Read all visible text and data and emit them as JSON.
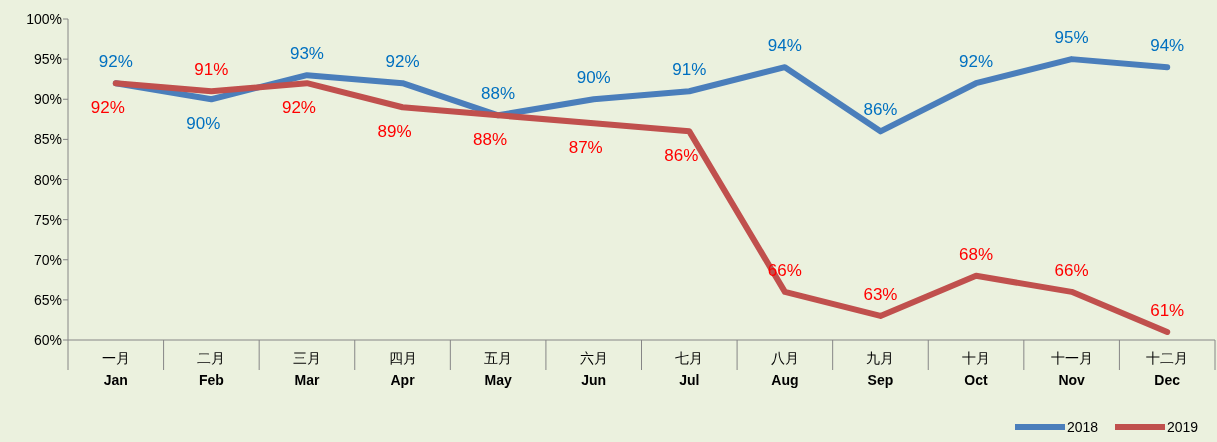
{
  "chart_data": {
    "type": "line",
    "categories": [
      "一月\nJan",
      "二月\nFeb",
      "三月\nMar",
      "四月\nApr",
      "五月\nMay",
      "六月\nJun",
      "七月\nJul",
      "八月\nAug",
      "九月\nSep",
      "十月\nOct",
      "十一月\nNov",
      "十二月\nDec"
    ],
    "series": [
      {
        "name": "2018",
        "color": "#4a7ebb",
        "values": [
          92,
          90,
          93,
          92,
          88,
          90,
          91,
          94,
          86,
          92,
          95,
          94
        ],
        "value_labels": [
          "92%",
          "90%",
          "93%",
          "92%",
          "88%",
          "90%",
          "91%",
          "94%",
          "86%",
          "92%",
          "95%",
          "94%"
        ]
      },
      {
        "name": "2019",
        "color": "#c0504d",
        "values": [
          92,
          91,
          92,
          89,
          88,
          87,
          86,
          66,
          63,
          68,
          66,
          61
        ],
        "value_labels": [
          "92%",
          "91%",
          "92%",
          "89%",
          "88%",
          "87%",
          "86%",
          "66%",
          "63%",
          "68%",
          "66%",
          "61%"
        ]
      }
    ],
    "ylim": [
      60,
      100
    ],
    "yticks": [
      {
        "value": 60,
        "label": "60%"
      },
      {
        "value": 65,
        "label": "65%"
      },
      {
        "value": 70,
        "label": "70%"
      },
      {
        "value": 75,
        "label": "75%"
      },
      {
        "value": 80,
        "label": "80%"
      },
      {
        "value": 85,
        "label": "85%"
      },
      {
        "value": 90,
        "label": "90%"
      },
      {
        "value": 95,
        "label": "95%"
      },
      {
        "value": 100,
        "label": "100%"
      }
    ],
    "grid": false,
    "legend": "bottom right",
    "marker": "none",
    "line_style": "solid"
  }
}
